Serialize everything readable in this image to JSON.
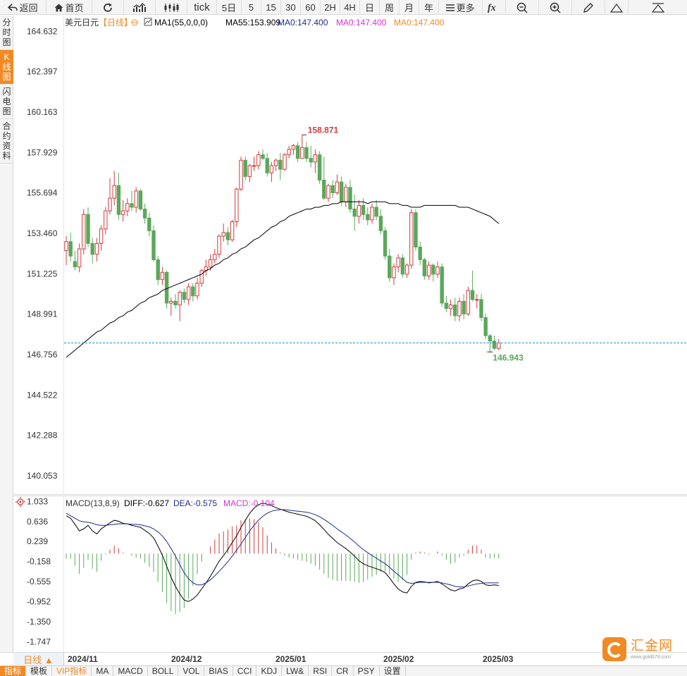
{
  "toolbar": {
    "back": "返回",
    "home": "首页",
    "tick": "tick",
    "periods": [
      "5日",
      "5",
      "15",
      "30",
      "60",
      "2H",
      "4H",
      "日",
      "周",
      "月",
      "年"
    ],
    "more": "更多"
  },
  "side_tabs": [
    {
      "label": "分时图",
      "active": false
    },
    {
      "label": "K线图",
      "active": true
    },
    {
      "label": "闪电图",
      "active": false
    },
    {
      "label": "合约资料",
      "active": false
    }
  ],
  "legend": {
    "symbol": "美元日元",
    "period": "【日线】",
    "ma1": "MA1(55,0,0,0)",
    "ma55": "MA55:153.909",
    "ma_a": "MA0:147.400",
    "ma_b": "MA0:147.400",
    "ma_c": "MA0:147.400"
  },
  "macd_legend": {
    "name": "MACD(13,8,9)",
    "diff": "DIFF:-0.627",
    "dea": "DEA:-0.575",
    "macd": "MACD:-0.104"
  },
  "price_axis_labels": [
    "164.632",
    "162.397",
    "160.163",
    "157.929",
    "155.694",
    "153.460",
    "151.225",
    "148.991",
    "146.756",
    "144.522",
    "142.288",
    "140.053"
  ],
  "macd_axis_labels": [
    "1.033",
    "0.636",
    "0.239",
    "-0.158",
    "-0.555",
    "-0.952",
    "-1.350",
    "-1.747"
  ],
  "period_button": "日线 ▲",
  "dates": [
    "2024/11",
    "2024/12",
    "2025/01",
    "2025/02",
    "2025/03"
  ],
  "indicator_tabs": [
    "指标",
    "模板",
    "VIP指标",
    "MA",
    "MACD",
    "BOLL",
    "VOL",
    "BIAS",
    "CCI",
    "KDJ",
    "LW&",
    "RSI",
    "CR",
    "PSY",
    "设置"
  ],
  "watermark": {
    "name": "汇金网",
    "url": "www.gold678.com"
  },
  "colors": {
    "up": "#d33c3c",
    "down": "#5aa85a",
    "ma": "#000000",
    "dea": "#1f2b8f",
    "macd": "#d633d6",
    "accent": "#f08a24",
    "last_price_line": "#1d8fd8"
  },
  "chart_data": {
    "type": "candlestick",
    "high_label": "158.871",
    "low_label": "146.943",
    "last_price": 147.4,
    "y_range": [
      139.0,
      165.5
    ],
    "candles": [
      [
        152.5,
        153.3,
        151.7,
        153.0
      ],
      [
        153.0,
        153.5,
        151.9,
        152.2
      ],
      [
        151.9,
        152.5,
        151.4,
        151.6
      ],
      [
        151.6,
        152.9,
        151.3,
        152.6
      ],
      [
        152.6,
        154.8,
        152.3,
        154.5
      ],
      [
        154.5,
        154.9,
        152.7,
        152.9
      ],
      [
        152.9,
        153.2,
        151.8,
        152.3
      ],
      [
        152.3,
        153.2,
        151.9,
        152.9
      ],
      [
        152.9,
        153.9,
        152.5,
        153.7
      ],
      [
        153.7,
        154.9,
        153.4,
        154.7
      ],
      [
        154.7,
        156.5,
        154.5,
        155.4
      ],
      [
        155.4,
        156.9,
        155.0,
        156.1
      ],
      [
        156.1,
        156.8,
        154.2,
        154.5
      ],
      [
        154.5,
        155.3,
        154.1,
        154.7
      ],
      [
        154.7,
        155.4,
        154.4,
        155.1
      ],
      [
        155.1,
        155.8,
        154.7,
        154.9
      ],
      [
        154.9,
        156.0,
        154.6,
        155.8
      ],
      [
        155.8,
        155.9,
        154.7,
        154.8
      ],
      [
        154.8,
        155.1,
        154.0,
        154.3
      ],
      [
        154.3,
        154.6,
        153.3,
        153.6
      ],
      [
        153.6,
        153.9,
        151.9,
        152.0
      ],
      [
        152.0,
        152.2,
        150.6,
        150.9
      ],
      [
        150.9,
        151.6,
        150.6,
        151.3
      ],
      [
        151.3,
        151.4,
        149.3,
        149.6
      ],
      [
        149.6,
        149.9,
        148.9,
        149.7
      ],
      [
        149.7,
        150.1,
        149.3,
        149.5
      ],
      [
        149.5,
        150.3,
        148.6,
        150.2
      ],
      [
        150.2,
        150.4,
        149.6,
        149.8
      ],
      [
        149.8,
        150.7,
        149.5,
        150.5
      ],
      [
        150.5,
        150.7,
        149.7,
        150.0
      ],
      [
        150.0,
        151.0,
        149.8,
        150.7
      ],
      [
        150.7,
        151.5,
        150.5,
        151.4
      ],
      [
        151.4,
        152.0,
        151.1,
        151.6
      ],
      [
        151.6,
        152.3,
        151.4,
        152.0
      ],
      [
        152.0,
        152.6,
        151.8,
        152.3
      ],
      [
        152.3,
        153.4,
        152.1,
        153.3
      ],
      [
        153.3,
        154.0,
        153.0,
        153.5
      ],
      [
        153.5,
        153.8,
        152.8,
        153.1
      ],
      [
        153.1,
        154.2,
        153.0,
        154.1
      ],
      [
        154.1,
        156.0,
        153.8,
        155.9
      ],
      [
        155.9,
        157.7,
        155.8,
        157.5
      ],
      [
        157.5,
        157.7,
        156.4,
        156.6
      ],
      [
        156.6,
        157.3,
        156.3,
        157.2
      ],
      [
        157.2,
        157.7,
        156.9,
        157.2
      ],
      [
        157.2,
        158.0,
        157.0,
        157.8
      ],
      [
        157.8,
        158.1,
        157.5,
        157.6
      ],
      [
        157.6,
        157.9,
        156.6,
        156.8
      ],
      [
        156.8,
        157.4,
        156.3,
        157.2
      ],
      [
        157.2,
        157.6,
        156.9,
        157.5
      ],
      [
        157.5,
        157.9,
        156.4,
        157.0
      ],
      [
        157.0,
        157.9,
        156.9,
        157.8
      ],
      [
        157.8,
        158.3,
        157.6,
        158.1
      ],
      [
        158.1,
        158.4,
        157.8,
        158.3
      ],
      [
        158.3,
        158.5,
        157.4,
        157.6
      ],
      [
        157.6,
        158.9,
        157.6,
        158.2
      ],
      [
        158.2,
        158.5,
        157.4,
        157.6
      ],
      [
        157.6,
        158.3,
        157.1,
        157.4
      ],
      [
        157.4,
        158.1,
        156.8,
        157.8
      ],
      [
        157.8,
        158.0,
        156.2,
        156.4
      ],
      [
        156.4,
        157.7,
        155.3,
        155.4
      ],
      [
        155.4,
        156.2,
        155.2,
        156.1
      ],
      [
        156.1,
        156.4,
        155.4,
        155.7
      ],
      [
        155.7,
        156.7,
        155.6,
        156.3
      ],
      [
        156.3,
        156.6,
        155.0,
        155.2
      ],
      [
        155.2,
        156.2,
        154.9,
        156.0
      ],
      [
        156.0,
        156.4,
        154.6,
        154.8
      ],
      [
        154.8,
        155.6,
        153.6,
        154.4
      ],
      [
        154.4,
        155.3,
        154.0,
        155.0
      ],
      [
        155.0,
        155.4,
        154.2,
        154.5
      ],
      [
        154.5,
        154.9,
        153.9,
        154.2
      ],
      [
        154.2,
        155.1,
        154.0,
        154.9
      ],
      [
        154.9,
        155.3,
        154.2,
        154.4
      ],
      [
        154.4,
        154.8,
        153.4,
        153.6
      ],
      [
        153.6,
        153.8,
        152.0,
        152.2
      ],
      [
        152.2,
        152.6,
        150.8,
        151.0
      ],
      [
        151.0,
        151.8,
        150.6,
        151.6
      ],
      [
        151.6,
        152.3,
        151.3,
        152.1
      ],
      [
        152.1,
        152.3,
        151.0,
        151.2
      ],
      [
        151.2,
        151.8,
        151.0,
        151.7
      ],
      [
        151.7,
        154.8,
        151.5,
        154.6
      ],
      [
        154.6,
        154.8,
        152.5,
        152.7
      ],
      [
        152.7,
        153.0,
        151.7,
        152.0
      ],
      [
        152.0,
        152.1,
        150.9,
        151.1
      ],
      [
        151.1,
        151.9,
        150.9,
        151.7
      ],
      [
        151.7,
        151.8,
        150.8,
        151.2
      ],
      [
        151.2,
        151.9,
        151.0,
        151.6
      ],
      [
        151.6,
        151.8,
        149.4,
        149.6
      ],
      [
        149.6,
        150.0,
        149.1,
        149.3
      ],
      [
        149.3,
        149.8,
        148.9,
        149.5
      ],
      [
        149.5,
        149.9,
        148.6,
        148.9
      ],
      [
        148.9,
        149.9,
        148.6,
        149.7
      ],
      [
        149.7,
        150.1,
        148.7,
        149.0
      ],
      [
        149.0,
        150.5,
        148.9,
        150.3
      ],
      [
        150.3,
        151.4,
        149.7,
        149.8
      ],
      [
        149.8,
        150.1,
        149.3,
        149.8
      ],
      [
        149.8,
        150.1,
        148.6,
        148.8
      ],
      [
        148.8,
        149.0,
        147.6,
        147.8
      ],
      [
        147.8,
        147.9,
        146.9,
        147.5
      ],
      [
        147.5,
        147.8,
        147.0,
        147.1
      ],
      [
        147.1,
        147.6,
        147.0,
        147.4
      ]
    ],
    "ma55": [
      146.6,
      146.8,
      147.0,
      147.2,
      147.4,
      147.6,
      147.8,
      148.0,
      148.1,
      148.3,
      148.5,
      148.6,
      148.8,
      148.9,
      149.1,
      149.2,
      149.4,
      149.6,
      149.7,
      149.9,
      150.0,
      150.1,
      150.3,
      150.4,
      150.5,
      150.6,
      150.7,
      150.8,
      150.9,
      151.0,
      151.1,
      151.2,
      151.4,
      151.5,
      151.7,
      151.8,
      152.0,
      152.1,
      152.3,
      152.4,
      152.6,
      152.7,
      152.9,
      153.1,
      153.2,
      153.4,
      153.6,
      153.8,
      153.9,
      154.1,
      154.2,
      154.4,
      154.5,
      154.6,
      154.7,
      154.8,
      154.8,
      154.9,
      154.9,
      155.0,
      155.0,
      155.1,
      155.1,
      155.2,
      155.2,
      155.2,
      155.2,
      155.2,
      155.2,
      155.1,
      155.2,
      155.2,
      155.2,
      155.2,
      155.1,
      155.1,
      155.1,
      155.0,
      155.0,
      154.9,
      154.9,
      154.9,
      155.0,
      155.0,
      155.0,
      155.0,
      155.0,
      155.0,
      155.0,
      155.0,
      154.9,
      154.9,
      154.9,
      154.8,
      154.7,
      154.6,
      154.5,
      154.4,
      154.2,
      154.0
    ],
    "macd": {
      "diff": [
        0.75,
        0.7,
        0.58,
        0.45,
        0.49,
        0.56,
        0.45,
        0.39,
        0.49,
        0.55,
        0.61,
        0.66,
        0.64,
        0.6,
        0.59,
        0.56,
        0.54,
        0.52,
        0.46,
        0.4,
        0.31,
        0.15,
        -0.03,
        -0.25,
        -0.47,
        -0.65,
        -0.8,
        -0.92,
        -0.95,
        -0.9,
        -0.82,
        -0.7,
        -0.58,
        -0.45,
        -0.3,
        -0.15,
        -0.04,
        0.08,
        0.22,
        0.35,
        0.52,
        0.66,
        0.8,
        0.9,
        0.97,
        1.0,
        0.98,
        0.95,
        0.91,
        0.88,
        0.85,
        0.82,
        0.8,
        0.78,
        0.76,
        0.74,
        0.7,
        0.65,
        0.57,
        0.48,
        0.38,
        0.3,
        0.22,
        0.16,
        0.1,
        0.03,
        -0.05,
        -0.14,
        -0.2,
        -0.24,
        -0.27,
        -0.3,
        -0.33,
        -0.38,
        -0.48,
        -0.6,
        -0.7,
        -0.76,
        -0.78,
        -0.65,
        -0.57,
        -0.55,
        -0.56,
        -0.58,
        -0.57,
        -0.55,
        -0.6,
        -0.66,
        -0.72,
        -0.74,
        -0.7,
        -0.68,
        -0.6,
        -0.54,
        -0.52,
        -0.55,
        -0.62,
        -0.63,
        -0.62,
        -0.63
      ],
      "dea": [
        0.8,
        0.75,
        0.7,
        0.65,
        0.63,
        0.62,
        0.6,
        0.57,
        0.56,
        0.56,
        0.57,
        0.58,
        0.59,
        0.59,
        0.59,
        0.58,
        0.58,
        0.57,
        0.55,
        0.53,
        0.49,
        0.43,
        0.35,
        0.24,
        0.1,
        -0.05,
        -0.22,
        -0.38,
        -0.5,
        -0.58,
        -0.62,
        -0.62,
        -0.58,
        -0.52,
        -0.44,
        -0.35,
        -0.26,
        -0.16,
        -0.05,
        0.07,
        0.19,
        0.32,
        0.45,
        0.56,
        0.66,
        0.74,
        0.8,
        0.84,
        0.86,
        0.87,
        0.87,
        0.86,
        0.85,
        0.84,
        0.83,
        0.82,
        0.8,
        0.77,
        0.73,
        0.68,
        0.62,
        0.56,
        0.49,
        0.43,
        0.37,
        0.3,
        0.23,
        0.15,
        0.08,
        0.02,
        -0.04,
        -0.09,
        -0.15,
        -0.2,
        -0.27,
        -0.35,
        -0.42,
        -0.5,
        -0.57,
        -0.59,
        -0.58,
        -0.57,
        -0.57,
        -0.57,
        -0.57,
        -0.57,
        -0.58,
        -0.6,
        -0.62,
        -0.65,
        -0.66,
        -0.66,
        -0.64,
        -0.62,
        -0.6,
        -0.59,
        -0.58,
        -0.58,
        -0.58,
        -0.58
      ],
      "y_range": [
        -1.95,
        1.15
      ]
    }
  }
}
